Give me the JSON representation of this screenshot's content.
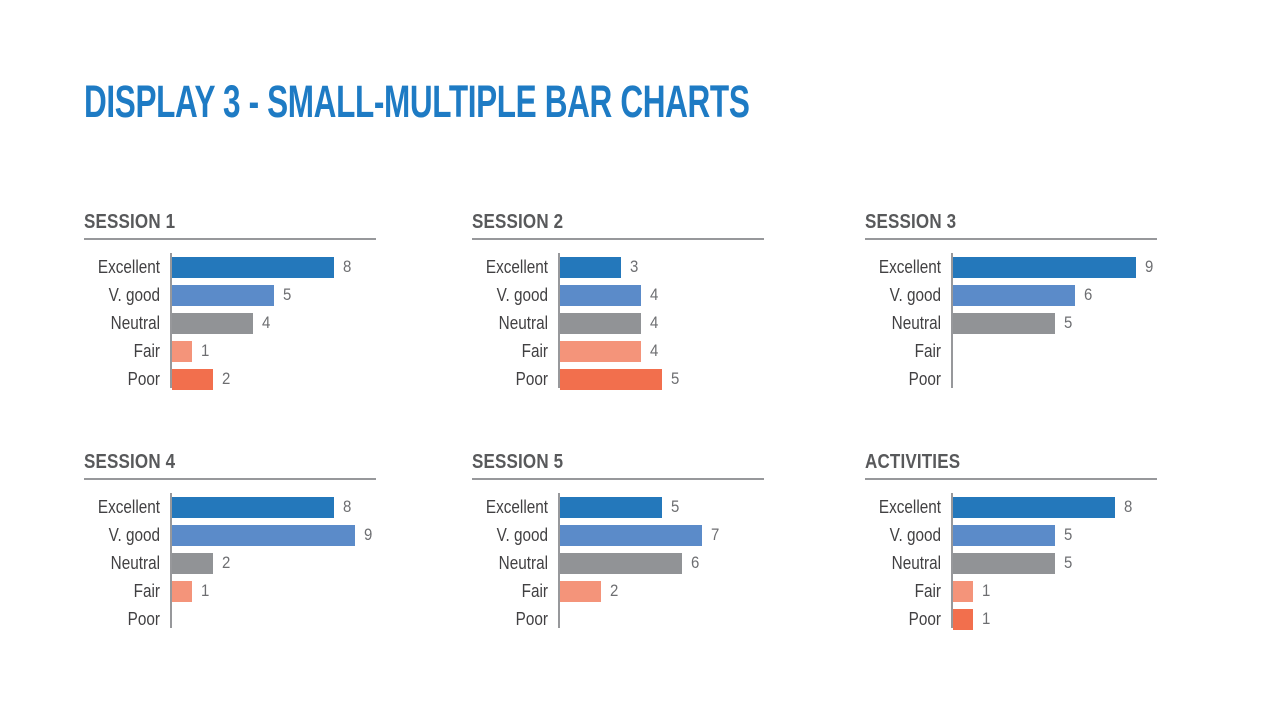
{
  "page": {
    "title": "DISPLAY 3 - SMALL-MULTIPLE BAR CHARTS"
  },
  "colors": {
    "title_text": "#1E7BC4",
    "chart_heading_text": "#58595B",
    "category_text": "#414042",
    "value_text": "#6D6E71",
    "axis_and_rule": "#97989B",
    "bar_palette": [
      "#2478BB",
      "#5B8BC9",
      "#919396",
      "#F4947A",
      "#F26F4D"
    ]
  },
  "chart_data": [
    {
      "type": "bar",
      "orientation": "horizontal",
      "title": "SESSION 1",
      "categories": [
        "Excellent",
        "V. good",
        "Neutral",
        "Fair",
        "Poor"
      ],
      "values": [
        8,
        5,
        4,
        1,
        2
      ],
      "xlim": [
        0,
        10
      ],
      "value_labels": true,
      "grid": false
    },
    {
      "type": "bar",
      "orientation": "horizontal",
      "title": "SESSION 2",
      "categories": [
        "Excellent",
        "V. good",
        "Neutral",
        "Fair",
        "Poor"
      ],
      "values": [
        3,
        4,
        4,
        4,
        5
      ],
      "xlim": [
        0,
        10
      ],
      "value_labels": true,
      "grid": false
    },
    {
      "type": "bar",
      "orientation": "horizontal",
      "title": "SESSION 3",
      "categories": [
        "Excellent",
        "V. good",
        "Neutral",
        "Fair",
        "Poor"
      ],
      "values": [
        9,
        6,
        5,
        null,
        null
      ],
      "xlim": [
        0,
        10
      ],
      "value_labels": true,
      "grid": false
    },
    {
      "type": "bar",
      "orientation": "horizontal",
      "title": "SESSION 4",
      "categories": [
        "Excellent",
        "V. good",
        "Neutral",
        "Fair",
        "Poor"
      ],
      "values": [
        8,
        9,
        2,
        1,
        null
      ],
      "xlim": [
        0,
        10
      ],
      "value_labels": true,
      "grid": false
    },
    {
      "type": "bar",
      "orientation": "horizontal",
      "title": "SESSION 5",
      "categories": [
        "Excellent",
        "V. good",
        "Neutral",
        "Fair",
        "Poor"
      ],
      "values": [
        5,
        7,
        6,
        2,
        null
      ],
      "xlim": [
        0,
        10
      ],
      "value_labels": true,
      "grid": false
    },
    {
      "type": "bar",
      "orientation": "horizontal",
      "title": "ACTIVITIES",
      "categories": [
        "Excellent",
        "V. good",
        "Neutral",
        "Fair",
        "Poor"
      ],
      "values": [
        8,
        5,
        5,
        1,
        1
      ],
      "xlim": [
        0,
        10
      ],
      "value_labels": true,
      "grid": false
    }
  ]
}
